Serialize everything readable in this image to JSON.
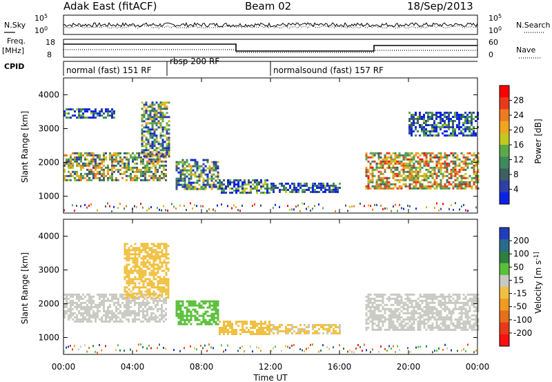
{
  "header": {
    "title": "Adak East (fitACF)",
    "beam": "Beam 02",
    "date": "18/Sep/2013"
  },
  "left_labels": {
    "nsky": "N.Sky",
    "freq": "Freq.",
    "mhz": "[MHz]",
    "cpid": "CPID"
  },
  "right_labels": {
    "nsearch": "N.Search",
    "nave": "Nave"
  },
  "noise_axis": {
    "left": [
      "10^5",
      "10^0"
    ],
    "right": [
      "10^5",
      "10^0"
    ]
  },
  "freq_axis": {
    "left": [
      "18",
      "8"
    ],
    "right": [
      "60",
      "0"
    ]
  },
  "cpid_segments": [
    {
      "label": "normal (fast) 151 RF",
      "start": 0,
      "end": 6.0
    },
    {
      "label": "rbsp 200 RF",
      "start": 6.0,
      "end": 12.0
    },
    {
      "label": "normalsound (fast) 157 RF",
      "start": 12.0,
      "end": 24.0
    }
  ],
  "colors": {
    "power": [
      "#0b22e6",
      "#2d3fa8",
      "#3d5f5f",
      "#3d8a5c",
      "#5ea84a",
      "#c3c71e",
      "#f0a51e",
      "#f07a1e",
      "#e83a1a",
      "#ff0000"
    ],
    "velocity": [
      "#1f3dbd",
      "#2a6a8f",
      "#2f7f3f",
      "#5abf3a",
      "#c9c9c3",
      "#f0c040",
      "#f09a20",
      "#e86f1a",
      "#e83a1a",
      "#ff1010"
    ]
  },
  "chart_data": [
    {
      "type": "heatmap",
      "name": "Power",
      "xlabel": "Time UT",
      "ylabel": "Slant Range [km]",
      "xlim": [
        0,
        24
      ],
      "ylim": [
        500,
        4500
      ],
      "x_ticks": [
        "00:00",
        "04:00",
        "08:00",
        "12:00",
        "16:00",
        "20:00",
        "00:00"
      ],
      "y_ticks": [
        1000,
        2000,
        3000,
        4000
      ],
      "colorbar_label": "Power [dB]",
      "colorbar_ticks": [
        4,
        8,
        12,
        16,
        20,
        24,
        28
      ],
      "colorbar_range": [
        0,
        30
      ],
      "regions": [
        {
          "t0": 0.0,
          "t1": 6.0,
          "r0": 1500,
          "r1": 2300,
          "value": 14
        },
        {
          "t0": 0.0,
          "t1": 3.0,
          "r0": 3300,
          "r1": 3600,
          "value": 6
        },
        {
          "t0": 4.5,
          "t1": 6.1,
          "r0": 2200,
          "r1": 3800,
          "value": 10
        },
        {
          "t0": 6.5,
          "t1": 9.0,
          "r0": 1200,
          "r1": 2100,
          "value": 10
        },
        {
          "t0": 9.0,
          "t1": 12.0,
          "r0": 1100,
          "r1": 1500,
          "value": 8
        },
        {
          "t0": 12.0,
          "t1": 16.0,
          "r0": 1100,
          "r1": 1400,
          "value": 6
        },
        {
          "t0": 17.5,
          "t1": 24.0,
          "r0": 1200,
          "r1": 2300,
          "value": 18
        },
        {
          "t0": 20.0,
          "t1": 24.0,
          "r0": 2800,
          "r1": 3500,
          "value": 6
        }
      ]
    },
    {
      "type": "heatmap",
      "name": "Velocity",
      "xlabel": "Time UT",
      "ylabel": "Slant Range [km]",
      "xlim": [
        0,
        24
      ],
      "ylim": [
        500,
        4500
      ],
      "x_ticks": [
        "00:00",
        "04:00",
        "08:00",
        "12:00",
        "16:00",
        "20:00",
        "00:00"
      ],
      "y_ticks": [
        1000,
        2000,
        3000,
        4000
      ],
      "colorbar_label": "Velocity [m s^-1]",
      "colorbar_ticks": [
        200,
        100,
        50,
        15,
        -15,
        -50,
        -100,
        -200
      ],
      "regions": [
        {
          "t0": 0.0,
          "t1": 6.0,
          "r0": 1500,
          "r1": 2300,
          "value": 0
        },
        {
          "t0": 3.5,
          "t1": 6.1,
          "r0": 2200,
          "r1": 3800,
          "value": -40
        },
        {
          "t0": 6.5,
          "t1": 9.0,
          "r0": 1400,
          "r1": 2100,
          "value": 40
        },
        {
          "t0": 9.0,
          "t1": 12.0,
          "r0": 1100,
          "r1": 1500,
          "value": -30
        },
        {
          "t0": 12.0,
          "t1": 16.0,
          "r0": 1100,
          "r1": 1400,
          "value": -20
        },
        {
          "t0": 17.5,
          "t1": 24.0,
          "r0": 1200,
          "r1": 2300,
          "value": 0
        }
      ]
    }
  ]
}
